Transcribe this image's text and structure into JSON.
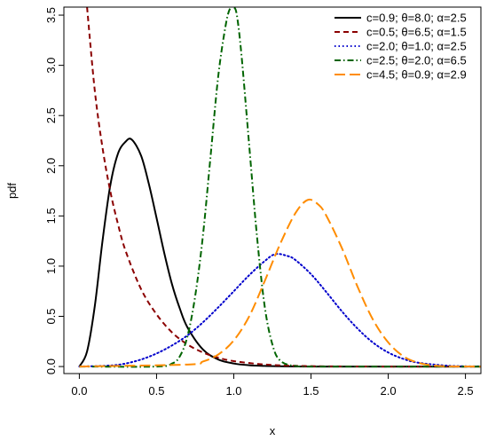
{
  "chart_data": {
    "type": "line",
    "title": "",
    "xlabel": "x",
    "ylabel": "pdf",
    "xlim": [
      -0.1,
      2.6
    ],
    "ylim": [
      -0.07,
      3.58
    ],
    "xticks": [
      "0.0",
      "0.5",
      "1.0",
      "1.5",
      "2.0",
      "2.5"
    ],
    "yticks": [
      "0.0",
      "0.5",
      "1.0",
      "1.5",
      "2.0",
      "2.5",
      "3.0",
      "3.5"
    ],
    "grid": false,
    "legend_position": "top-right",
    "series": [
      {
        "name": "c=0.9; θ=8.0; α=2.5",
        "color": "#000000",
        "dash": "solid",
        "x": [
          0.0,
          0.05,
          0.1,
          0.15,
          0.2,
          0.25,
          0.3,
          0.34,
          0.4,
          0.45,
          0.5,
          0.55,
          0.6,
          0.65,
          0.7,
          0.8,
          0.9,
          1.0,
          1.1,
          1.2,
          1.3,
          1.4,
          1.6,
          2.0,
          2.6
        ],
        "y": [
          0.0,
          0.15,
          0.6,
          1.25,
          1.8,
          2.12,
          2.24,
          2.26,
          2.1,
          1.82,
          1.48,
          1.13,
          0.82,
          0.58,
          0.39,
          0.17,
          0.07,
          0.03,
          0.013,
          0.006,
          0.003,
          0.001,
          0.0,
          0.0,
          0.0
        ]
      },
      {
        "name": "c=0.5; θ=6.5; α=1.5",
        "color": "#8b0000",
        "dash": "dashed",
        "x": [
          0.05,
          0.1,
          0.15,
          0.2,
          0.25,
          0.3,
          0.4,
          0.5,
          0.6,
          0.7,
          0.8,
          0.9,
          1.0,
          1.2,
          1.4,
          1.6,
          2.0,
          2.6
        ],
        "y": [
          3.58,
          2.75,
          2.18,
          1.75,
          1.42,
          1.15,
          0.77,
          0.52,
          0.34,
          0.22,
          0.14,
          0.088,
          0.054,
          0.02,
          0.007,
          0.002,
          0.0,
          0.0
        ]
      },
      {
        "name": "c=2.0; θ=1.0; α=2.5",
        "color": "#0000cc",
        "dash": "dotted",
        "x": [
          0.0,
          0.2,
          0.3,
          0.4,
          0.5,
          0.6,
          0.7,
          0.8,
          0.9,
          1.0,
          1.1,
          1.2,
          1.27,
          1.35,
          1.4,
          1.5,
          1.6,
          1.7,
          1.8,
          1.9,
          2.0,
          2.1,
          2.2,
          2.4,
          2.6
        ],
        "y": [
          0.0,
          0.01,
          0.03,
          0.07,
          0.13,
          0.21,
          0.31,
          0.44,
          0.59,
          0.75,
          0.91,
          1.05,
          1.12,
          1.1,
          1.06,
          0.92,
          0.74,
          0.55,
          0.38,
          0.24,
          0.14,
          0.075,
          0.037,
          0.007,
          0.001
        ]
      },
      {
        "name": "c=2.5; θ=2.0; α=6.5",
        "color": "#006400",
        "dash": "dashdot",
        "x": [
          0.0,
          0.5,
          0.6,
          0.65,
          0.7,
          0.75,
          0.8,
          0.85,
          0.9,
          0.95,
          0.98,
          1.0,
          1.02,
          1.05,
          1.1,
          1.15,
          1.2,
          1.25,
          1.3,
          1.4,
          1.6,
          2.6
        ],
        "y": [
          0.0,
          0.0,
          0.03,
          0.1,
          0.3,
          0.7,
          1.3,
          2.1,
          2.9,
          3.42,
          3.58,
          3.58,
          3.5,
          3.1,
          2.2,
          1.3,
          0.6,
          0.22,
          0.06,
          0.005,
          0.0,
          0.0
        ]
      },
      {
        "name": "c=4.5; θ=0.9; α=2.9",
        "color": "#ff8c00",
        "dash": "longdash",
        "x": [
          0.0,
          0.7,
          0.8,
          0.9,
          1.0,
          1.1,
          1.2,
          1.3,
          1.4,
          1.48,
          1.55,
          1.6,
          1.7,
          1.8,
          1.9,
          2.0,
          2.1,
          2.2,
          2.3,
          2.4,
          2.6
        ],
        "y": [
          0.0,
          0.02,
          0.05,
          0.12,
          0.26,
          0.5,
          0.85,
          1.22,
          1.53,
          1.66,
          1.61,
          1.5,
          1.18,
          0.8,
          0.47,
          0.24,
          0.1,
          0.035,
          0.01,
          0.002,
          0.0
        ]
      }
    ]
  }
}
